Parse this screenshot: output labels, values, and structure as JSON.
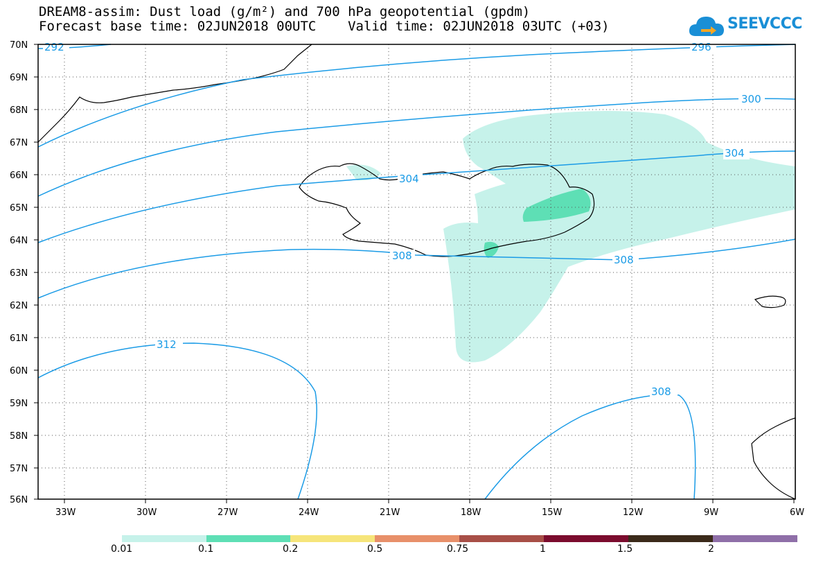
{
  "title": {
    "line1": "DREAM8-assim: Dust load (g/m²) and 700 hPa geopotential (gpdm)",
    "line2": "Forecast base time: 02JUN2018 00UTC    Valid time: 02JUN2018 03UTC (+03)"
  },
  "logo": {
    "text": "SEEVCCC",
    "icon": "cloud-arrow-icon",
    "color": "#1a8fd6"
  },
  "map": {
    "lon_range": [
      -34.5,
      -6
    ],
    "lat_range": [
      56,
      70
    ],
    "lat_ticks": [
      "70N",
      "69N",
      "68N",
      "67N",
      "66N",
      "65N",
      "64N",
      "63N",
      "62N",
      "61N",
      "60N",
      "59N",
      "58N",
      "57N",
      "56N"
    ],
    "lon_ticks": [
      "33W",
      "30W",
      "27W",
      "24W",
      "21W",
      "18W",
      "15W",
      "12W",
      "9W",
      "6W"
    ],
    "grid": "dotted",
    "contour_color": "#1a9be6",
    "contour_labels": [
      "292",
      "296",
      "300",
      "304",
      "304",
      "308",
      "308",
      "312",
      "308"
    ]
  },
  "colorbar": {
    "labels": [
      "0.01",
      "0.1",
      "0.2",
      "0.5",
      "0.75",
      "1",
      "1.5",
      "2"
    ],
    "colors": [
      "#c6f2ea",
      "#5edfb5",
      "#f6e57a",
      "#e8906a",
      "#a84f47",
      "#7b0c2e",
      "#3b2a1a",
      "#8f6fa8"
    ]
  }
}
